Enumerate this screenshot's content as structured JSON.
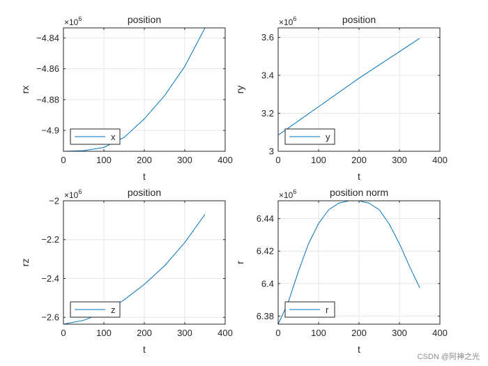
{
  "watermark": "CSDN @阿神之光",
  "chart_data": [
    {
      "type": "line",
      "title": "position",
      "xlabel": "t",
      "ylabel": "rx",
      "exponent": "6",
      "xlim": [
        0,
        400
      ],
      "ylim": [
        -4.9135,
        -4.8335
      ],
      "xticks": [
        0,
        100,
        200,
        300,
        400
      ],
      "yticks": [
        -4.9,
        -4.88,
        -4.86,
        -4.84
      ],
      "grid": true,
      "legend_location": "bottom-left",
      "series": [
        {
          "name": "x",
          "color": "#0072bd",
          "x": [
            0,
            50,
            100,
            150,
            200,
            250,
            300,
            350
          ],
          "y": [
            -4.9135,
            -4.9131,
            -4.911,
            -4.9045,
            -4.8925,
            -4.8775,
            -4.8585,
            -4.8335
          ]
        }
      ]
    },
    {
      "type": "line",
      "title": "position",
      "xlabel": "t",
      "ylabel": "ry",
      "exponent": "6",
      "xlim": [
        0,
        400
      ],
      "ylim": [
        3.0,
        3.65
      ],
      "xticks": [
        0,
        100,
        200,
        300,
        400
      ],
      "yticks": [
        3,
        3.2,
        3.4,
        3.6
      ],
      "grid": true,
      "legend_location": "bottom-left",
      "series": [
        {
          "name": "y",
          "color": "#0072bd",
          "x": [
            0,
            50,
            100,
            150,
            200,
            250,
            300,
            350
          ],
          "y": [
            3.085,
            3.16,
            3.235,
            3.31,
            3.385,
            3.455,
            3.525,
            3.595
          ]
        }
      ]
    },
    {
      "type": "line",
      "title": "position",
      "xlabel": "t",
      "ylabel": "rz",
      "exponent": "6",
      "xlim": [
        0,
        400
      ],
      "ylim": [
        -2.635,
        -2.0
      ],
      "xticks": [
        0,
        100,
        200,
        300,
        400
      ],
      "yticks": [
        -2.6,
        -2.4,
        -2.2,
        -2.0
      ],
      "grid": true,
      "legend_location": "bottom-left",
      "series": [
        {
          "name": "z",
          "color": "#0072bd",
          "x": [
            0,
            50,
            100,
            150,
            200,
            250,
            300,
            350
          ],
          "y": [
            -2.635,
            -2.615,
            -2.575,
            -2.51,
            -2.43,
            -2.335,
            -2.215,
            -2.07
          ]
        }
      ]
    },
    {
      "type": "line",
      "title": "position norm",
      "xlabel": "t",
      "ylabel": "r",
      "exponent": "6",
      "xlim": [
        0,
        400
      ],
      "ylim": [
        6.375,
        6.451
      ],
      "xticks": [
        0,
        100,
        200,
        300,
        400
      ],
      "yticks": [
        6.38,
        6.4,
        6.42,
        6.44
      ],
      "grid": true,
      "legend_location": "bottom-left",
      "series": [
        {
          "name": "r",
          "color": "#0072bd",
          "x": [
            0,
            25,
            50,
            75,
            100,
            125,
            150,
            175,
            200,
            225,
            250,
            275,
            300,
            325,
            350
          ],
          "y": [
            6.375,
            6.3885,
            6.4075,
            6.4245,
            6.437,
            6.4455,
            6.4495,
            6.451,
            6.451,
            6.4495,
            6.4455,
            6.4365,
            6.4245,
            6.4105,
            6.3975
          ]
        }
      ]
    }
  ]
}
